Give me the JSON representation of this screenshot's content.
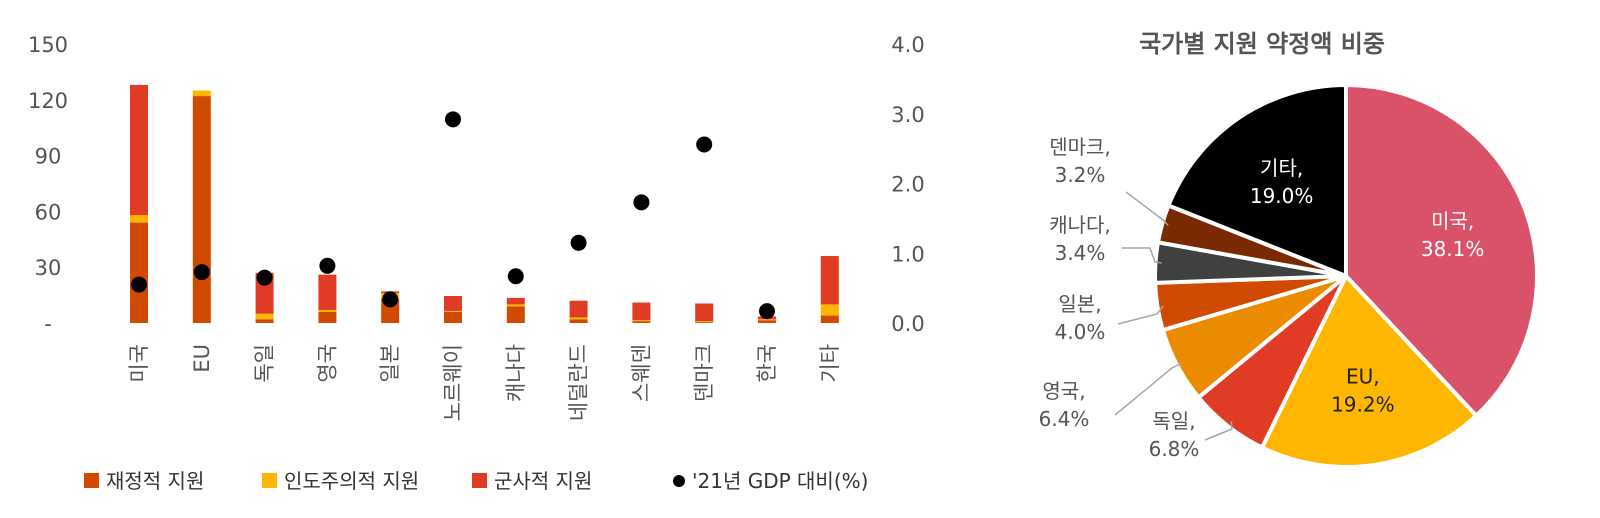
{
  "chart_data": [
    {
      "type": "bar",
      "stacked": true,
      "categories": [
        "미국",
        "EU",
        "독일",
        "영국",
        "일본",
        "노르웨이",
        "캐나다",
        "네덜란드",
        "스웨덴",
        "덴마크",
        "한국",
        "기타"
      ],
      "series": [
        {
          "name": "재정적 지원",
          "color": "#d04a02",
          "axis": "left",
          "values": [
            54,
            122,
            2,
            6,
            13,
            6,
            9,
            2,
            1,
            0.5,
            1.5,
            4
          ]
        },
        {
          "name": "인도주의적 지원",
          "color": "#ffb600",
          "axis": "left",
          "values": [
            4,
            3,
            3,
            1,
            3,
            0.5,
            1,
            1,
            0.5,
            0.5,
            0.5,
            6
          ]
        },
        {
          "name": "군사적 지원",
          "color": "#e03b24",
          "axis": "left",
          "values": [
            70,
            0,
            22,
            19,
            1,
            8,
            3.5,
            9,
            9.5,
            9.5,
            1.5,
            26
          ]
        },
        {
          "name": "'21년 GDP 대비(%)",
          "type": "scatter",
          "color": "#000000",
          "axis": "right",
          "values": [
            0.55,
            0.73,
            0.65,
            0.82,
            0.34,
            2.92,
            0.67,
            1.15,
            1.73,
            2.56,
            0.17,
            null
          ]
        }
      ],
      "yAxisLeft": {
        "min": 0,
        "max": 150,
        "ticks": [
          "-",
          "30",
          "60",
          "90",
          "120",
          "150"
        ]
      },
      "yAxisRight": {
        "min": 0,
        "max": 4,
        "ticks": [
          "0.0",
          "1.0",
          "2.0",
          "3.0",
          "4.0"
        ]
      },
      "legend_position": "bottom",
      "grid": false
    },
    {
      "type": "pie",
      "title": "국가별 지원 약정액 비중",
      "slices": [
        {
          "label": "미국",
          "pct": "38.1%",
          "value": 38.1,
          "color": "#d9526a",
          "label_inside": true,
          "label_color": "#ffffff"
        },
        {
          "label": "EU",
          "pct": "19.2%",
          "value": 19.2,
          "color": "#ffb600",
          "label_inside": true,
          "label_color": "#222222"
        },
        {
          "label": "독일",
          "pct": "6.8%",
          "value": 6.8,
          "color": "#e03b24",
          "label_inside": false,
          "label_color": "#555555"
        },
        {
          "label": "영국",
          "pct": "6.4%",
          "value": 6.4,
          "color": "#eb8c00",
          "label_inside": false,
          "label_color": "#555555"
        },
        {
          "label": "일본",
          "pct": "4.0%",
          "value": 4.0,
          "color": "#d04a02",
          "label_inside": false,
          "label_color": "#555555"
        },
        {
          "label": "캐나다",
          "pct": "3.4%",
          "value": 3.4,
          "color": "#404040",
          "label_inside": false,
          "label_color": "#555555"
        },
        {
          "label": "덴마크",
          "pct": "3.2%",
          "value": 3.2,
          "color": "#7a2a00",
          "label_inside": false,
          "label_color": "#555555"
        },
        {
          "label": "기타",
          "pct": "19.0%",
          "value": 19.0,
          "color": "#000000",
          "label_inside": true,
          "label_color": "#ffffff"
        }
      ]
    }
  ]
}
